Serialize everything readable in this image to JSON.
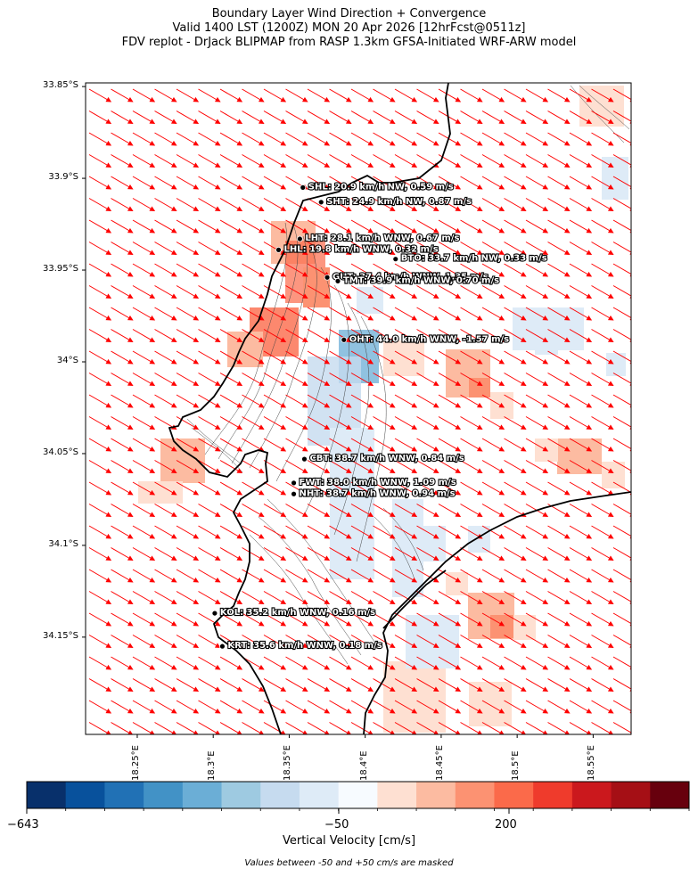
{
  "title": {
    "line1": "Boundary Layer Wind Direction + Convergence",
    "line2": "Valid 1400 LST (1200Z) MON 20 Apr 2026 [12hrFcst@0511z]",
    "line3": "FDV replot - DrJack BLIPMAP from RASP 1.3km GFSA-Initiated WRF-ARW model"
  },
  "chart_data": {
    "type": "heatmap",
    "title": "Boundary Layer Wind Direction + Convergence",
    "xlim": [
      18.216,
      18.575
    ],
    "ylim": [
      -34.203,
      -33.848
    ],
    "y_ticks": [
      {
        "value": -33.85,
        "label": "33.85°S"
      },
      {
        "value": -33.9,
        "label": "33.9°S"
      },
      {
        "value": -33.95,
        "label": "33.95°S"
      },
      {
        "value": -34.0,
        "label": "34°S"
      },
      {
        "value": -34.05,
        "label": "34.05°S"
      },
      {
        "value": -34.1,
        "label": "34.1°S"
      },
      {
        "value": -34.15,
        "label": "34.15°S"
      }
    ],
    "x_ticks": [
      {
        "value": 18.25,
        "label": "18.25°E"
      },
      {
        "value": 18.3,
        "label": "18.3°E"
      },
      {
        "value": 18.35,
        "label": "18.35°E"
      },
      {
        "value": 18.4,
        "label": "18.4°E"
      },
      {
        "value": 18.45,
        "label": "18.45°E"
      },
      {
        "value": 18.5,
        "label": "18.5°E"
      },
      {
        "value": 18.55,
        "label": "18.55°E"
      }
    ],
    "wind": {
      "direction_deg": 300,
      "arrow_color": "#ff0000"
    },
    "stations": [
      {
        "lon": 18.359,
        "lat": -33.905,
        "label": "SHL: 20.9 km/h NW, 0.59 m/s"
      },
      {
        "lon": 18.371,
        "lat": -33.913,
        "label": "SHT: 24.9 km/h NW, 0.87 m/s"
      },
      {
        "lon": 18.357,
        "lat": -33.933,
        "label": "LHT: 28.1 km/h WNW, 0.67 m/s"
      },
      {
        "lon": 18.343,
        "lat": -33.939,
        "label": "LHL: 19.8 km/h WNW, 0.32 m/s"
      },
      {
        "lon": 18.42,
        "lat": -33.944,
        "label": "BTO: 33.7 km/h NW, 0.33 m/s"
      },
      {
        "lon": 18.375,
        "lat": -33.954,
        "label": "GUT: 37.4 km/h WNW, 1.35 m/s"
      },
      {
        "lon": 18.382,
        "lat": -33.956,
        "label": "TMT: 39.9 km/h WNW, 0.70 m/s"
      },
      {
        "lon": 18.386,
        "lat": -33.988,
        "label": "OHT: 44.0 km/h WNW, -1.57 m/s"
      },
      {
        "lon": 18.36,
        "lat": -34.053,
        "label": "CBT: 38.7 km/h WNW, 0.84 m/s"
      },
      {
        "lon": 18.353,
        "lat": -34.066,
        "label": "FWT: 38.0 km/h WNW, 1.09 m/s"
      },
      {
        "lon": 18.353,
        "lat": -34.072,
        "label": "NHT: 38.7 km/h WNW, 0.94 m/s"
      },
      {
        "lon": 18.301,
        "lat": -34.137,
        "label": "KOL: 35.2 km/h WNW, 0.16 m/s"
      },
      {
        "lon": 18.306,
        "lat": -34.155,
        "label": "KRT: 35.6 km/h WNW, 0.18 m/s"
      }
    ],
    "colorbar": {
      "label": "Vertical Velocity [cm/s]",
      "ticks": [
        "−643",
        "−50",
        "200"
      ],
      "colors": [
        "#08306b",
        "#08519c",
        "#2171b5",
        "#4292c6",
        "#6baed6",
        "#9ecae1",
        "#c6dbef",
        "#deebf7",
        "#f7fbff",
        "#fee0d2",
        "#fcbba1",
        "#fc9272",
        "#fb6a4a",
        "#ef3b2c",
        "#cb181d",
        "#a50f15",
        "#67000d"
      ]
    },
    "footnote": "Values between -50 and +50 cm/s are masked"
  }
}
